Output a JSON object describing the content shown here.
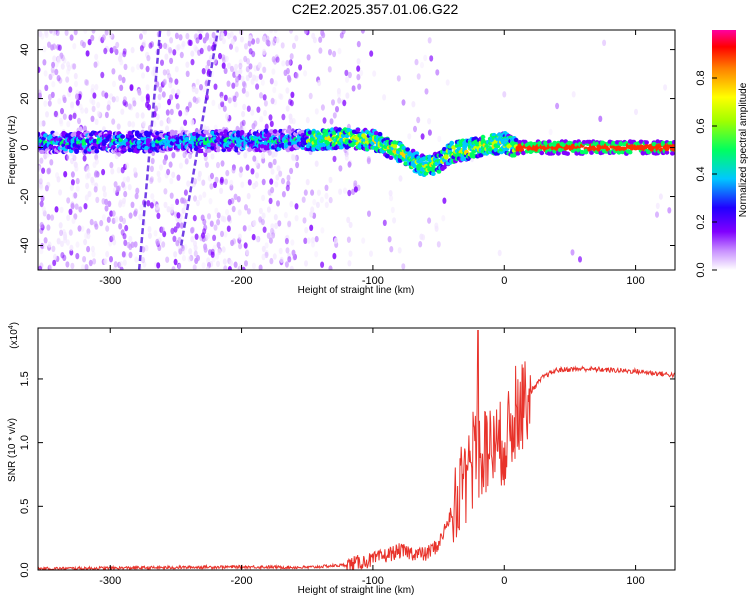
{
  "title": "C2E2.2025.357.01.06.G22",
  "chart_data": [
    {
      "type": "heatmap",
      "title": "C2E2.2025.357.01.06.G22",
      "xlabel": "Height of straight line (km)",
      "ylabel": "Frequency (Hz)",
      "xlim": [
        -355,
        130
      ],
      "ylim": [
        -50,
        48
      ],
      "xticks": [
        -300,
        -200,
        -100,
        0,
        100
      ],
      "yticks": [
        -40,
        -20,
        0,
        20,
        40
      ],
      "colorbar": {
        "label": "Normalized spectral amplitude",
        "ticks": [
          "0.0",
          "0.2",
          "0.4",
          "0.6",
          "0.8"
        ],
        "range": [
          0,
          1
        ]
      },
      "center_track": {
        "x": [
          -355,
          -150,
          -120,
          -100,
          -80,
          -60,
          -50,
          -40,
          -20,
          0,
          10,
          130
        ],
        "y": [
          2,
          3,
          4,
          3,
          -2,
          -8,
          -6,
          -2,
          0,
          2,
          0,
          0
        ]
      }
    },
    {
      "type": "line",
      "xlabel": "Height of straight line (km)",
      "ylabel": "SNR (10 * v/v)",
      "yscale_label": "(x10",
      "yscale_exp": "4",
      "xlim": [
        -355,
        130
      ],
      "ylim": [
        0,
        1.9
      ],
      "xticks": [
        -300,
        -200,
        -100,
        0,
        100
      ],
      "yticks": [
        "0.0",
        "0.5",
        "1.0",
        "1.5"
      ],
      "series": [
        {
          "name": "SNR",
          "color": "#e8322a",
          "x": [
            -355,
            -300,
            -250,
            -200,
            -150,
            -120,
            -100,
            -80,
            -60,
            -50,
            -40,
            -30,
            -20,
            -10,
            0,
            10,
            20,
            30,
            40,
            60,
            80,
            100,
            120,
            130
          ],
          "y": [
            0.01,
            0.015,
            0.02,
            0.025,
            0.02,
            0.04,
            0.08,
            0.15,
            0.12,
            0.2,
            0.45,
            0.7,
            0.9,
            0.95,
            1.0,
            1.2,
            1.4,
            1.52,
            1.57,
            1.58,
            1.57,
            1.56,
            1.54,
            1.53
          ]
        }
      ]
    }
  ]
}
